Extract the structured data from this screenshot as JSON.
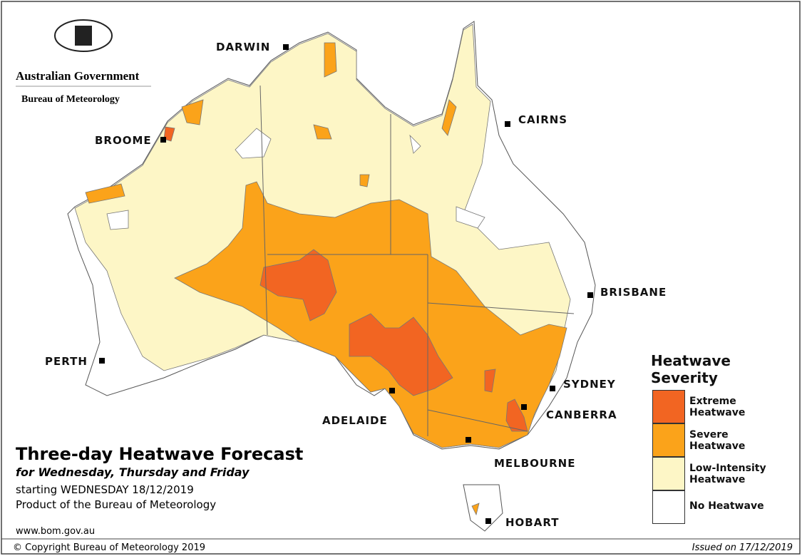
{
  "header": {
    "line1": "Australian Government",
    "line2": "Bureau of Meteorology"
  },
  "cities": [
    "DARWIN",
    "CAIRNS",
    "BROOME",
    "BRISBANE",
    "PERTH",
    "SYDNEY",
    "ADELAIDE",
    "CANBERRA",
    "MELBOURNE",
    "HOBART"
  ],
  "title": "Three-day Heatwave Forecast",
  "subtitle": "for Wednesday, Thursday and Friday",
  "starting": "starting WEDNESDAY 18/12/2019",
  "product": "Product of the Bureau of Meteorology",
  "website": "www.bom.gov.au",
  "legend": {
    "title": "Heatwave Severity",
    "items": [
      {
        "label": "Extreme Heatwave",
        "color": "#f26522"
      },
      {
        "label": "Severe Heatwave",
        "color": "#fba31a"
      },
      {
        "label": "Low-Intensity Heatwave",
        "color": "#fdf6c6"
      },
      {
        "label": "No Heatwave",
        "color": "#ffffff"
      }
    ]
  },
  "footer": {
    "copyright": "© Copyright Bureau of Meteorology 2019",
    "issued": "Issued on 17/12/2019"
  }
}
